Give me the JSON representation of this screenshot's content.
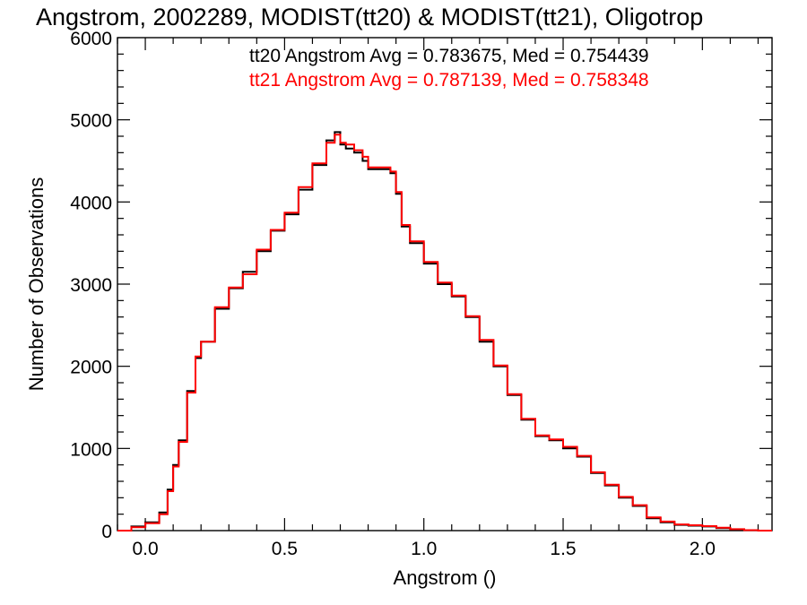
{
  "chart_data": {
    "type": "line",
    "step": true,
    "title": "Angstrom, 2002289, MODIST(tt20) & MODIST(tt21), Oligotrop",
    "xlabel": "Angstrom ()",
    "ylabel": "Number of Observations",
    "xlim": [
      -0.1,
      2.25
    ],
    "ylim": [
      0,
      6000
    ],
    "xticks": [
      0.0,
      0.5,
      1.0,
      1.5,
      2.0
    ],
    "xtick_labels": [
      "0.0",
      "0.5",
      "1.0",
      "1.5",
      "2.0"
    ],
    "yticks": [
      0,
      1000,
      2000,
      3000,
      4000,
      5000,
      6000
    ],
    "ytick_labels": [
      "0",
      "1000",
      "2000",
      "3000",
      "4000",
      "5000",
      "6000"
    ],
    "x_minor_step": 0.1,
    "y_minor_step": 200,
    "grid": false,
    "legend_position": "top-right",
    "legend": [
      {
        "text": "tt20 Angstrom Avg = 0.783675, Med = 0.754439",
        "color": "#000000"
      },
      {
        "text": "tt21 Angstrom Avg = 0.787139, Med = 0.758348",
        "color": "#ff0000"
      }
    ],
    "x": [
      -0.1,
      -0.05,
      0.0,
      0.05,
      0.08,
      0.1,
      0.12,
      0.15,
      0.18,
      0.2,
      0.25,
      0.3,
      0.35,
      0.4,
      0.45,
      0.5,
      0.55,
      0.6,
      0.65,
      0.68,
      0.7,
      0.72,
      0.75,
      0.78,
      0.8,
      0.85,
      0.88,
      0.9,
      0.92,
      0.95,
      1.0,
      1.05,
      1.1,
      1.15,
      1.2,
      1.25,
      1.3,
      1.35,
      1.4,
      1.45,
      1.5,
      1.55,
      1.6,
      1.65,
      1.7,
      1.75,
      1.8,
      1.85,
      1.9,
      1.95,
      2.0,
      2.05,
      2.1,
      2.15,
      2.2,
      2.25
    ],
    "series": [
      {
        "name": "tt20",
        "color": "#000000",
        "values": [
          0,
          50,
          100,
          220,
          500,
          800,
          1100,
          1700,
          2100,
          2300,
          2700,
          2950,
          3150,
          3400,
          3650,
          3850,
          4150,
          4450,
          4750,
          4850,
          4700,
          4650,
          4600,
          4500,
          4400,
          4400,
          4350,
          4100,
          3700,
          3500,
          3250,
          3000,
          2850,
          2600,
          2300,
          2000,
          1650,
          1350,
          1150,
          1100,
          1000,
          900,
          700,
          550,
          400,
          300,
          150,
          100,
          70,
          60,
          50,
          30,
          15,
          5,
          0,
          0
        ]
      },
      {
        "name": "tt21",
        "color": "#ff0000",
        "values": [
          0,
          40,
          90,
          200,
          480,
          780,
          1080,
          1680,
          2120,
          2300,
          2720,
          2960,
          3120,
          3420,
          3660,
          3870,
          4180,
          4470,
          4720,
          4820,
          4720,
          4700,
          4630,
          4550,
          4420,
          4420,
          4370,
          4120,
          3720,
          3520,
          3270,
          3020,
          2860,
          2610,
          2320,
          2010,
          1660,
          1360,
          1160,
          1110,
          1020,
          910,
          710,
          560,
          410,
          310,
          160,
          110,
          75,
          65,
          55,
          35,
          18,
          6,
          0,
          0
        ]
      }
    ]
  }
}
